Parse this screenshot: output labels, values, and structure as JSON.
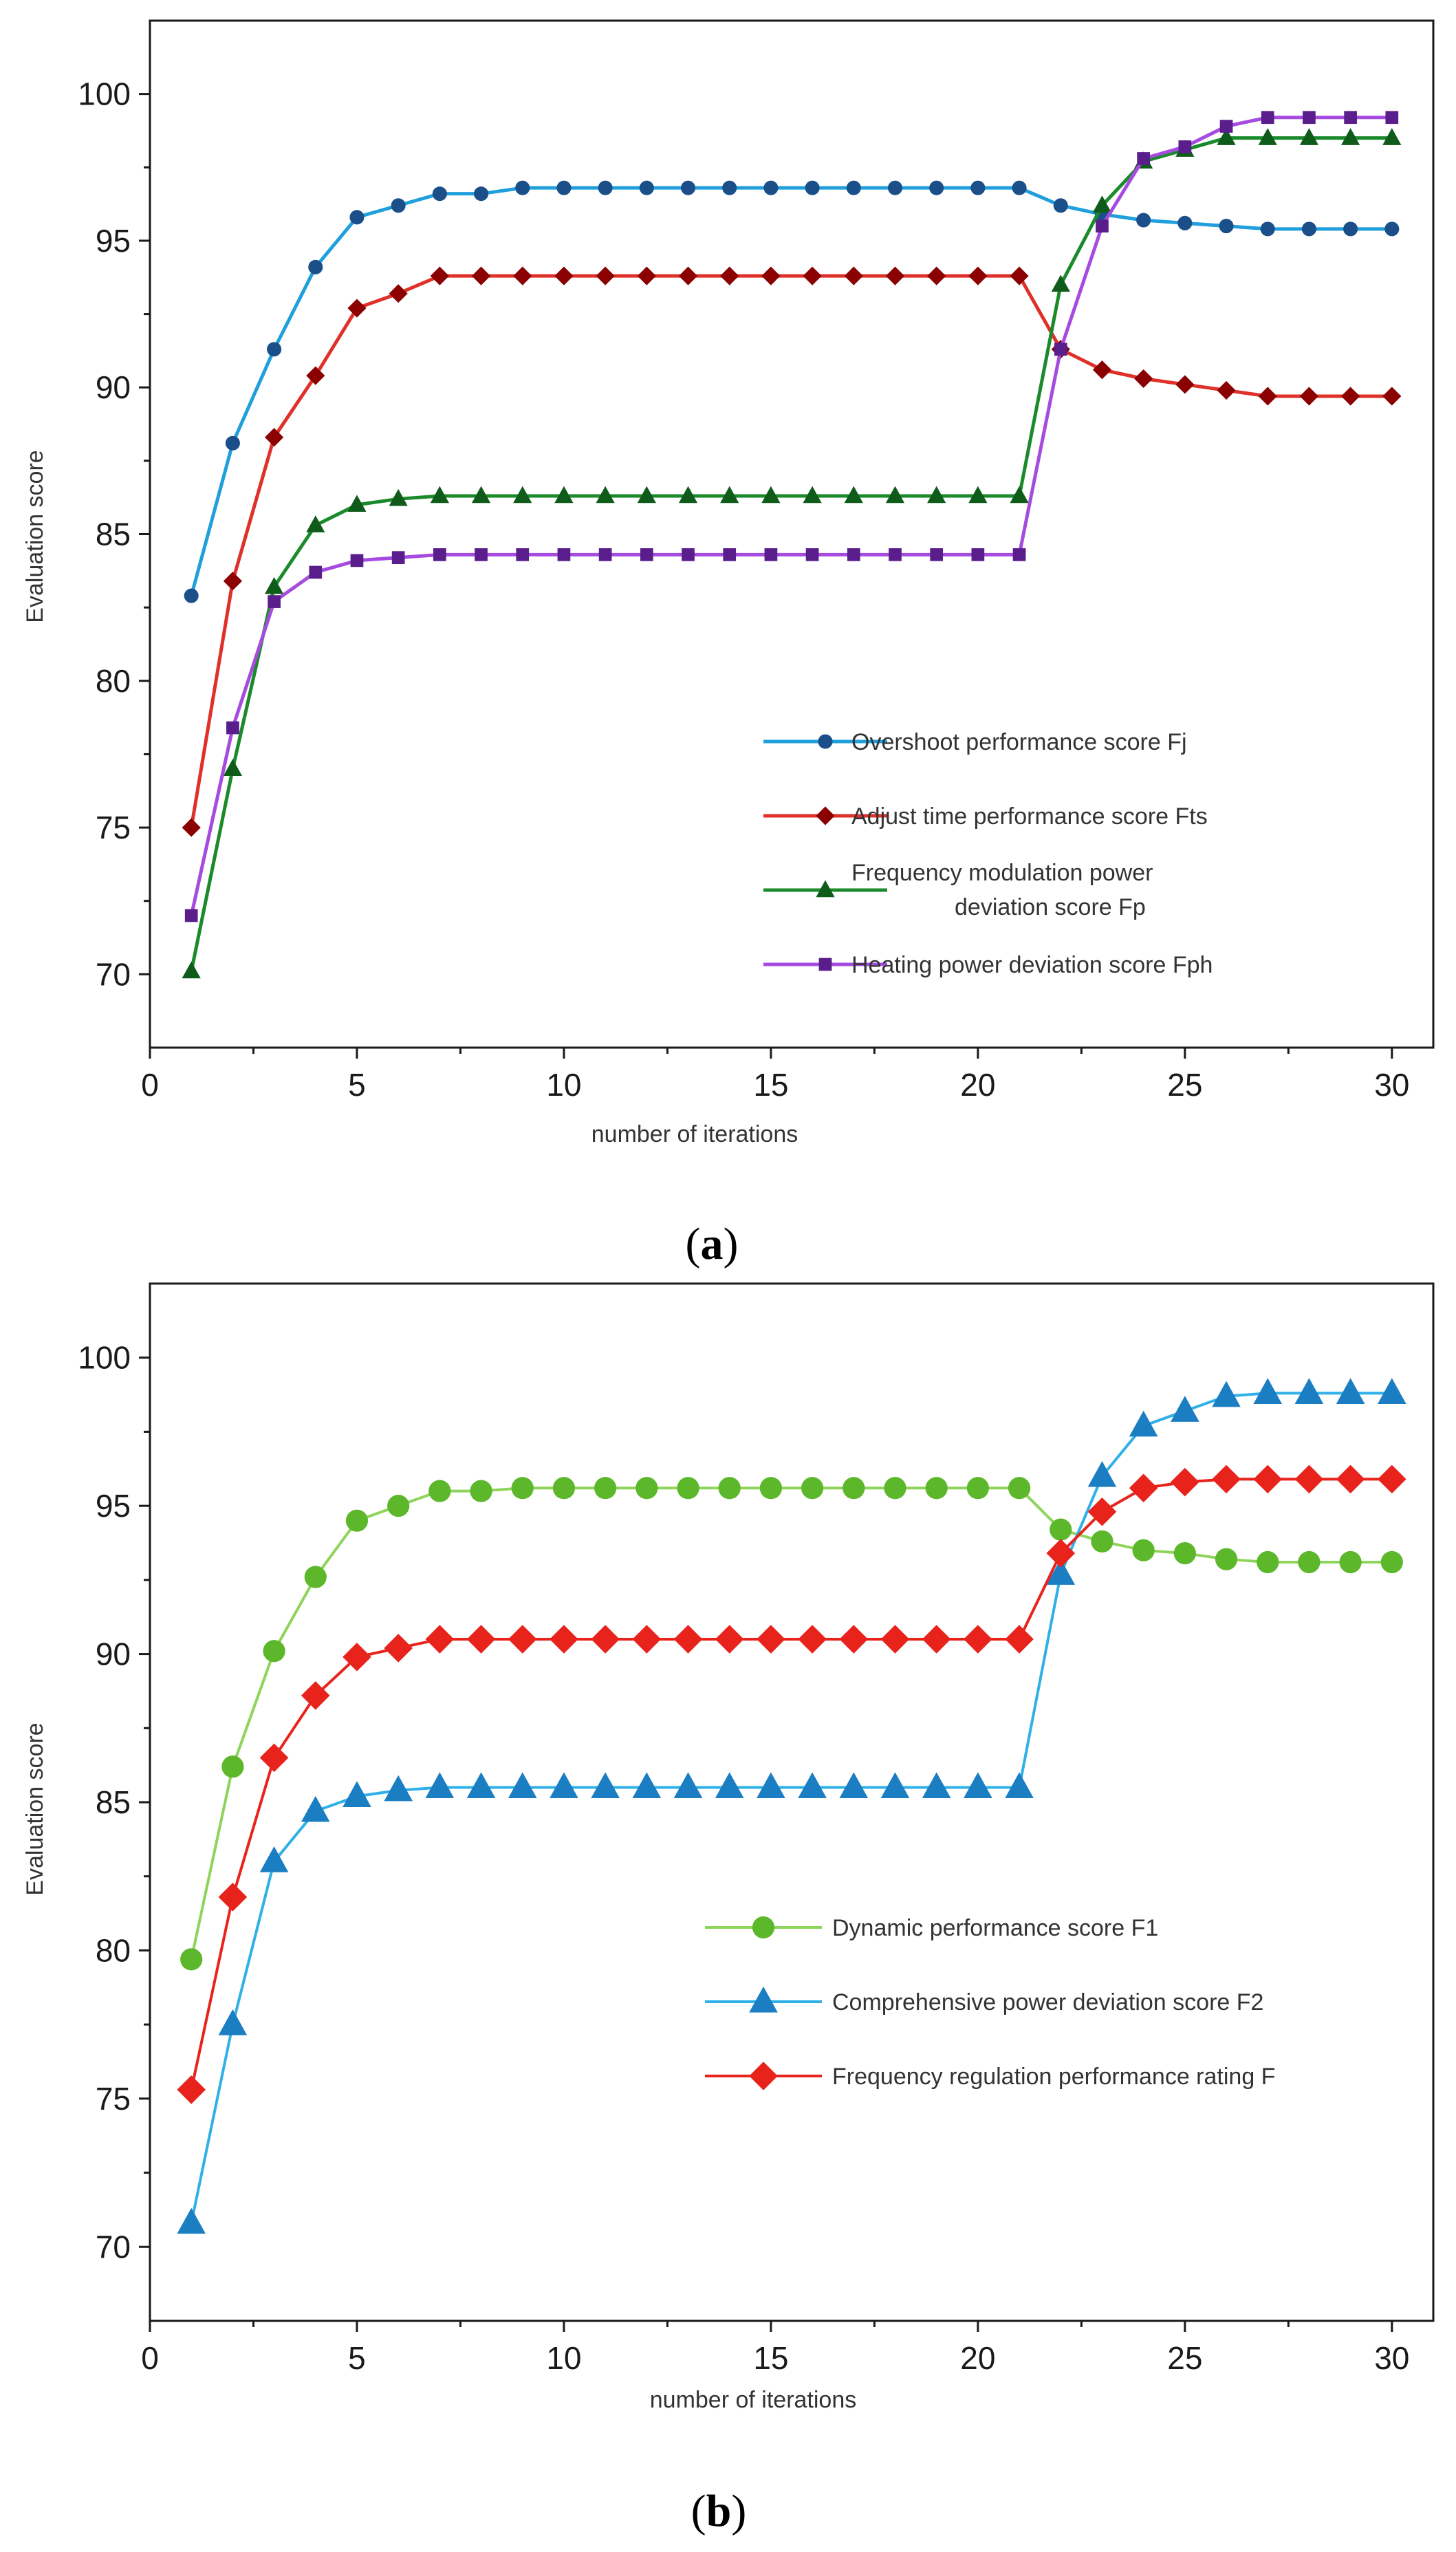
{
  "chart_data": [
    {
      "type": "line",
      "panel_label": "a",
      "xlabel": "number of iterations",
      "ylabel": "Evaluation score",
      "xlim": [
        0,
        31
      ],
      "ylim": [
        67.5,
        102.5
      ],
      "xticks": [
        0,
        5,
        10,
        15,
        20,
        25,
        30
      ],
      "yticks": [
        70,
        75,
        80,
        85,
        90,
        95,
        100
      ],
      "legend_position": "lower-right",
      "x": [
        1,
        2,
        3,
        4,
        5,
        6,
        7,
        8,
        9,
        10,
        11,
        12,
        13,
        14,
        15,
        16,
        17,
        18,
        19,
        20,
        21,
        22,
        23,
        24,
        25,
        26,
        27,
        28,
        29,
        30
      ],
      "series": [
        {
          "name": "Overshoot performance score Fj",
          "color": "#1f9fdc",
          "marker_color": "#1a4f8a",
          "marker": "circle",
          "values": [
            82.9,
            88.1,
            91.3,
            94.1,
            95.8,
            96.2,
            96.6,
            96.6,
            96.8,
            96.8,
            96.8,
            96.8,
            96.8,
            96.8,
            96.8,
            96.8,
            96.8,
            96.8,
            96.8,
            96.8,
            96.8,
            96.2,
            95.9,
            95.7,
            95.6,
            95.5,
            95.4,
            95.4,
            95.4,
            95.4
          ]
        },
        {
          "name": "Adjust  time performance score Fts",
          "color": "#e0302a",
          "marker_color": "#8b0000",
          "marker": "diamond",
          "values": [
            75.0,
            83.4,
            88.3,
            90.4,
            92.7,
            93.2,
            93.8,
            93.8,
            93.8,
            93.8,
            93.8,
            93.8,
            93.8,
            93.8,
            93.8,
            93.8,
            93.8,
            93.8,
            93.8,
            93.8,
            93.8,
            91.3,
            90.6,
            90.3,
            90.1,
            89.9,
            89.7,
            89.7,
            89.7,
            89.7
          ]
        },
        {
          "name": "Frequency modulation power",
          "name_line2": "deviation score Fp",
          "color": "#1a8a2a",
          "marker_color": "#0f5c1a",
          "marker": "triangle",
          "values": [
            70.1,
            77.0,
            83.2,
            85.3,
            86.0,
            86.2,
            86.3,
            86.3,
            86.3,
            86.3,
            86.3,
            86.3,
            86.3,
            86.3,
            86.3,
            86.3,
            86.3,
            86.3,
            86.3,
            86.3,
            86.3,
            93.5,
            96.2,
            97.7,
            98.1,
            98.5,
            98.5,
            98.5,
            98.5,
            98.5
          ]
        },
        {
          "name": "Heating power deviation score Fph",
          "color": "#a54be0",
          "marker_color": "#5a1e8c",
          "marker": "square",
          "values": [
            72.0,
            78.4,
            82.7,
            83.7,
            84.1,
            84.2,
            84.3,
            84.3,
            84.3,
            84.3,
            84.3,
            84.3,
            84.3,
            84.3,
            84.3,
            84.3,
            84.3,
            84.3,
            84.3,
            84.3,
            84.3,
            91.3,
            95.5,
            97.8,
            98.2,
            98.9,
            99.2,
            99.2,
            99.2,
            99.2
          ]
        }
      ]
    },
    {
      "type": "line",
      "panel_label": "b",
      "xlabel": "number of iterations",
      "ylabel": "Evaluation score",
      "xlim": [
        0,
        31
      ],
      "ylim": [
        67.5,
        102.5
      ],
      "xticks": [
        0,
        5,
        10,
        15,
        20,
        25,
        30
      ],
      "yticks": [
        70,
        75,
        80,
        85,
        90,
        95,
        100
      ],
      "legend_position": "lower-right",
      "x": [
        1,
        2,
        3,
        4,
        5,
        6,
        7,
        8,
        9,
        10,
        11,
        12,
        13,
        14,
        15,
        16,
        17,
        18,
        19,
        20,
        21,
        22,
        23,
        24,
        25,
        26,
        27,
        28,
        29,
        30
      ],
      "series": [
        {
          "name": "Dynamic performance score F1",
          "color": "#8fd45a",
          "marker_color": "#5cb82a",
          "marker": "circle",
          "values": [
            79.7,
            86.2,
            90.1,
            92.6,
            94.5,
            95.0,
            95.5,
            95.5,
            95.6,
            95.6,
            95.6,
            95.6,
            95.6,
            95.6,
            95.6,
            95.6,
            95.6,
            95.6,
            95.6,
            95.6,
            95.6,
            94.2,
            93.8,
            93.5,
            93.4,
            93.2,
            93.1,
            93.1,
            93.1,
            93.1
          ]
        },
        {
          "name": "Comprehensive power deviation score F2",
          "color": "#2fb0e8",
          "marker_color": "#1b7ec2",
          "marker": "triangle",
          "values": [
            70.8,
            77.5,
            83.0,
            84.7,
            85.2,
            85.4,
            85.5,
            85.5,
            85.5,
            85.5,
            85.5,
            85.5,
            85.5,
            85.5,
            85.5,
            85.5,
            85.5,
            85.5,
            85.5,
            85.5,
            85.5,
            92.7,
            96.0,
            97.7,
            98.2,
            98.7,
            98.8,
            98.8,
            98.8,
            98.8
          ]
        },
        {
          "name": "Frequency regulation performance rating F",
          "color": "#e8231c",
          "marker_color": "#e8231c",
          "marker": "diamond",
          "values": [
            75.3,
            81.8,
            86.5,
            88.6,
            89.9,
            90.2,
            90.5,
            90.5,
            90.5,
            90.5,
            90.5,
            90.5,
            90.5,
            90.5,
            90.5,
            90.5,
            90.5,
            90.5,
            90.5,
            90.5,
            90.5,
            93.4,
            94.8,
            95.6,
            95.8,
            95.9,
            95.9,
            95.9,
            95.9,
            95.9
          ]
        }
      ]
    }
  ]
}
